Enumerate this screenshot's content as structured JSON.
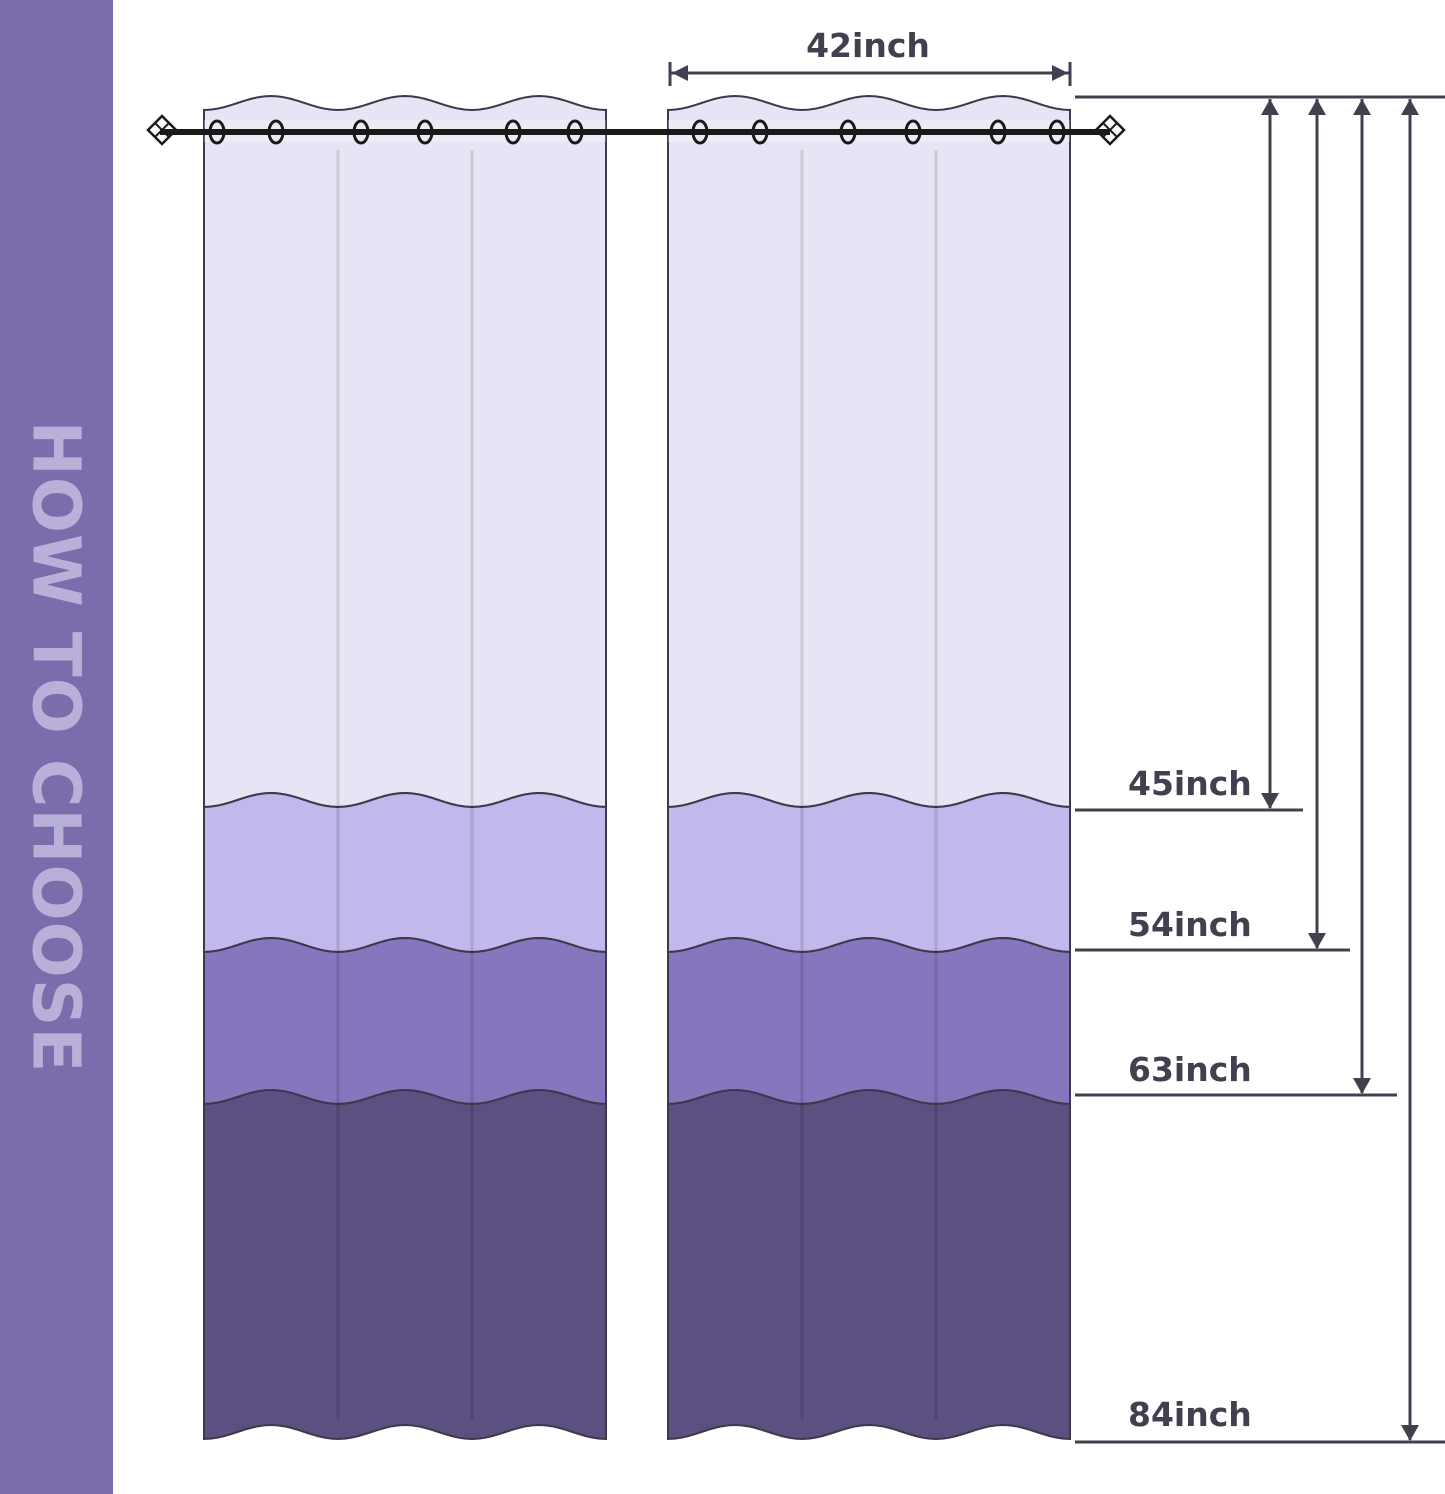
{
  "sidebar": {
    "title": "HOW TO CHOOSE"
  },
  "width_label": "42inch",
  "length_labels": [
    "45inch",
    "54inch",
    "63inch",
    "84inch"
  ],
  "colors": {
    "sidebar": "#7b6dab",
    "band_top": "#e8e4f5",
    "band_light": "#c2b8ec",
    "band_mid": "#8576bd",
    "band_dark": "#5b5080",
    "line": "#41404f"
  }
}
